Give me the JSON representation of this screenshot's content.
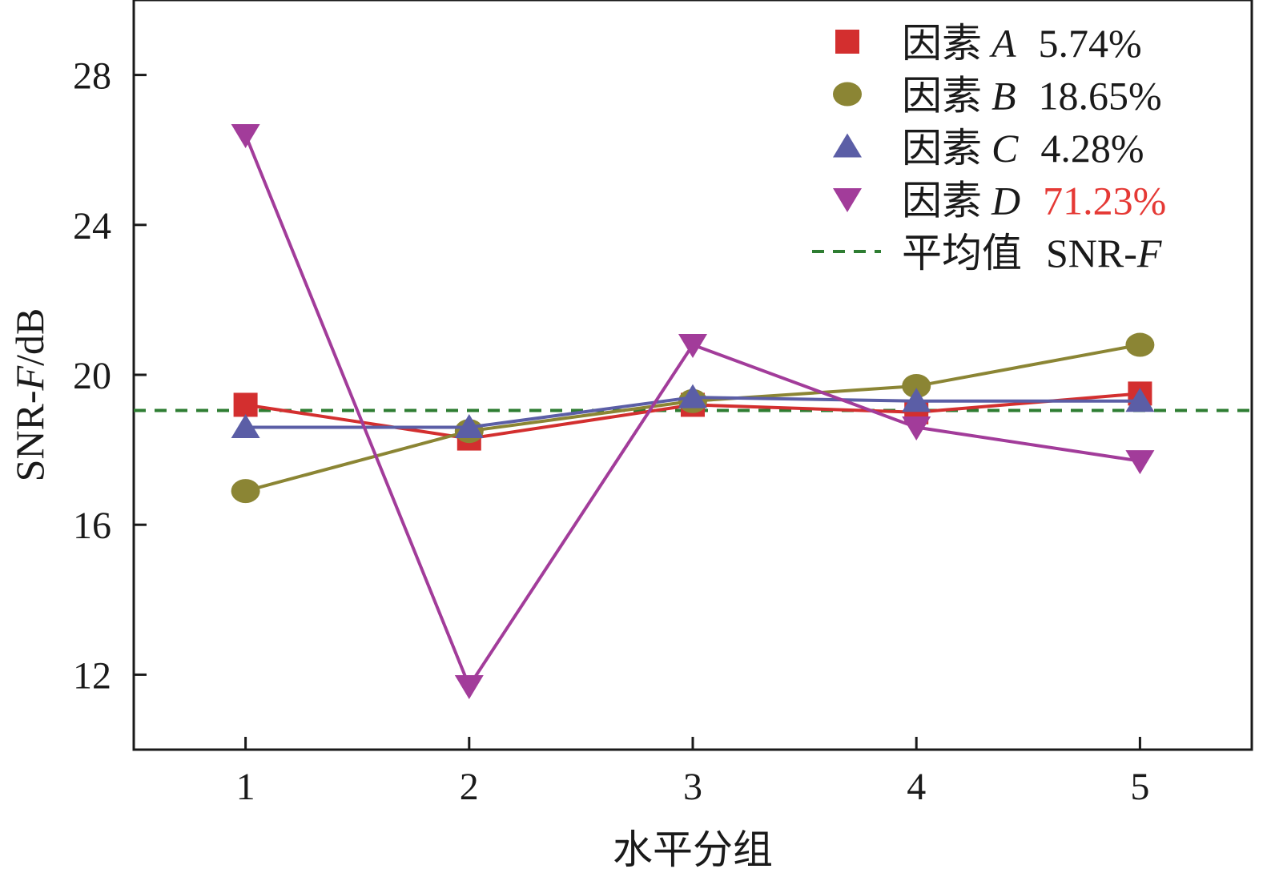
{
  "chart_data": {
    "type": "line",
    "xlabel": "水平分组",
    "ylabel": {
      "prefix": "SNR-",
      "italic": "F",
      "suffix": "/dB"
    },
    "x": [
      1,
      2,
      3,
      4,
      5
    ],
    "xlim": [
      0.5,
      5.5
    ],
    "ylim": [
      10,
      30
    ],
    "yticks": [
      12,
      16,
      20,
      24,
      28
    ],
    "grid": false,
    "legend_position": "top-right",
    "series": [
      {
        "key": "A",
        "legend_prefix": "因素",
        "legend_letter": "A",
        "legend_value": "5.74%",
        "marker": "square",
        "color": "#d32f2f",
        "value_color": "#1a1a1a",
        "values": [
          19.2,
          18.3,
          19.2,
          19.0,
          19.5
        ]
      },
      {
        "key": "B",
        "legend_prefix": "因素",
        "legend_letter": "B",
        "legend_value": "18.65%",
        "marker": "circle",
        "color": "#8b8534",
        "value_color": "#1a1a1a",
        "values": [
          16.9,
          18.5,
          19.3,
          19.7,
          20.8
        ]
      },
      {
        "key": "C",
        "legend_prefix": "因素",
        "legend_letter": "C",
        "legend_value": "4.28%",
        "marker": "triangle-up",
        "color": "#5b5ea6",
        "value_color": "#1a1a1a",
        "values": [
          18.6,
          18.6,
          19.4,
          19.3,
          19.3
        ]
      },
      {
        "key": "D",
        "legend_prefix": "因素",
        "legend_letter": "D",
        "legend_value": "71.23%",
        "marker": "triangle-down",
        "color": "#a23c9a",
        "value_color": "#e53935",
        "values": [
          26.4,
          11.7,
          20.8,
          18.6,
          17.7
        ]
      }
    ],
    "reference_line": {
      "legend_label": "平均值",
      "legend_suffix": "SNR-",
      "legend_italic": "F",
      "value": 19.05,
      "color": "#2e7d32",
      "style": "dashed"
    }
  }
}
